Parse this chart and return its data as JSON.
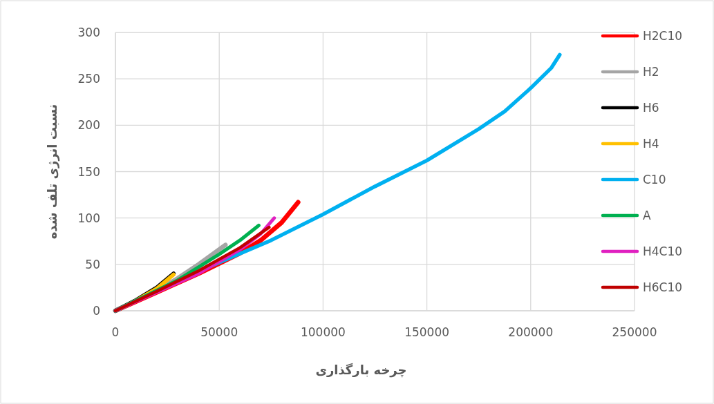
{
  "chart_data": {
    "type": "line",
    "xlabel": "چرخه بارگذاری",
    "ylabel": "نسبت انرژی تلف شده",
    "xlim": [
      0,
      250000
    ],
    "xticks": [
      0,
      50000,
      100000,
      150000,
      200000,
      250000
    ],
    "ylim": [
      0,
      300
    ],
    "yticks": [
      0,
      50,
      100,
      150,
      200,
      250,
      300
    ],
    "grid": true,
    "legend": "right",
    "marker": "none",
    "line_style": "solid",
    "series": [
      {
        "name": "H2C10",
        "color": "#ff0000",
        "x": [
          0,
          20000,
          40000,
          60000,
          70000,
          80000,
          88000
        ],
        "values": [
          0,
          20,
          40,
          62,
          76,
          95,
          117
        ]
      },
      {
        "name": "H2",
        "color": "#a5a5a5",
        "x": [
          0,
          20000,
          30000,
          40000,
          53000
        ],
        "values": [
          0,
          22,
          35,
          50,
          71
        ]
      },
      {
        "name": "H6",
        "color": "#000000",
        "x": [
          0,
          10000,
          20000,
          28000
        ],
        "values": [
          0,
          11.5,
          25,
          40
        ]
      },
      {
        "name": "H4",
        "color": "#ffc000",
        "x": [
          0,
          10000,
          20000,
          28000
        ],
        "values": [
          0,
          11,
          24,
          39
        ]
      },
      {
        "name": "C10",
        "color": "#00b0f0",
        "x": [
          0,
          25000,
          50000,
          75000,
          100000,
          125000,
          150000,
          175000,
          187500,
          200000,
          210000,
          214000
        ],
        "values": [
          0,
          27,
          52,
          76,
          104,
          134,
          162,
          196,
          215,
          240,
          262,
          276
        ]
      },
      {
        "name": "A",
        "color": "#00b050",
        "x": [
          0,
          30000,
          50000,
          60000,
          69000
        ],
        "values": [
          0,
          33,
          61,
          76,
          92
        ]
      },
      {
        "name": "H4C10",
        "color": "#e020c0",
        "x": [
          0,
          40000,
          60000,
          70000,
          76500
        ],
        "values": [
          0,
          40,
          66,
          83,
          100
        ]
      },
      {
        "name": "H6C10",
        "color": "#c00000",
        "x": [
          0,
          20000,
          40000,
          60000,
          74000
        ],
        "values": [
          0,
          21,
          43,
          68,
          90
        ]
      }
    ]
  }
}
